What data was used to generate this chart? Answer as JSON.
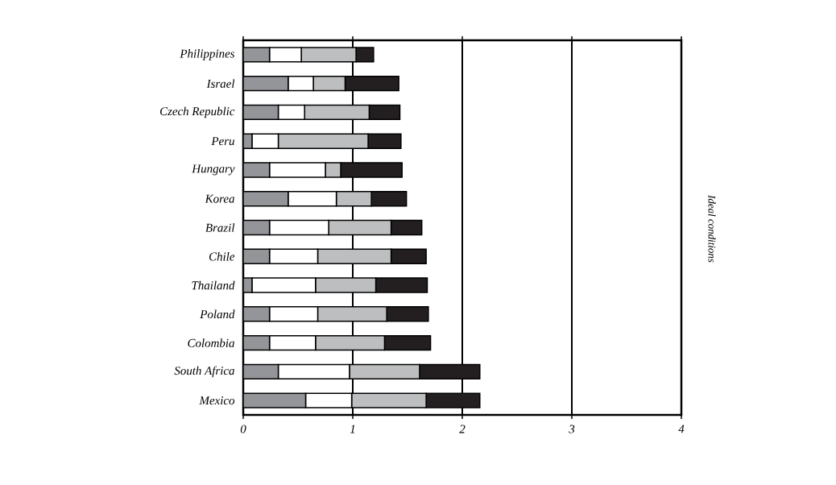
{
  "chart_data": {
    "type": "bar",
    "orientation": "horizontal",
    "stacked": true,
    "grid": "x",
    "categories": [
      "Philippines",
      "Israel",
      "Czech Republic",
      "Peru",
      "Hungary",
      "Korea",
      "Brazil",
      "Chile",
      "Thailand",
      "Poland",
      "Colombia",
      "South Africa",
      "Mexico"
    ],
    "xlim": [
      0,
      4
    ],
    "xticks": [
      0,
      1,
      2,
      3,
      4
    ],
    "series": [
      {
        "color": "#939598",
        "values": [
          0.24,
          0.41,
          0.32,
          0.08,
          0.24,
          0.41,
          0.24,
          0.24,
          0.08,
          0.24,
          0.24,
          0.32,
          0.57
        ]
      },
      {
        "color": "#ffffff",
        "values": [
          0.29,
          0.23,
          0.24,
          0.24,
          0.51,
          0.44,
          0.54,
          0.44,
          0.58,
          0.44,
          0.42,
          0.65,
          0.42
        ]
      },
      {
        "color": "#bcbec0",
        "values": [
          0.5,
          0.29,
          0.59,
          0.82,
          0.14,
          0.32,
          0.57,
          0.67,
          0.55,
          0.63,
          0.63,
          0.64,
          0.68
        ]
      },
      {
        "color": "#231f20",
        "values": [
          0.16,
          0.49,
          0.28,
          0.3,
          0.56,
          0.32,
          0.28,
          0.32,
          0.47,
          0.38,
          0.42,
          0.55,
          0.49
        ]
      }
    ],
    "annotations": [
      "Ideal conditions"
    ]
  }
}
